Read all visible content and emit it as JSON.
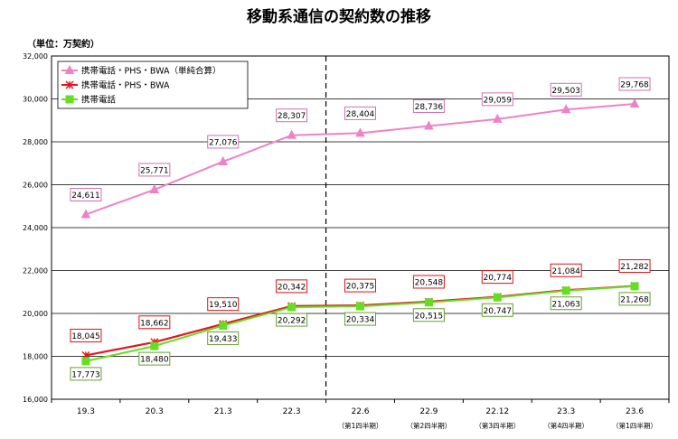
{
  "chart_data": {
    "type": "line",
    "title": "移動系通信の契約数の推移",
    "unit_label": "（単位：万契約）",
    "categories": [
      "19.3",
      "20.3",
      "21.3",
      "22.3",
      "22.6",
      "22.9",
      "22.12",
      "23.3",
      "23.6"
    ],
    "sublabels": [
      "",
      "",
      "",
      "",
      "（第1四半期）",
      "（第2四半期）",
      "（第3四半期）",
      "（第4四半期）",
      "（第1四半期）"
    ],
    "ylim": [
      16000,
      32000
    ],
    "yticks": [
      16000,
      18000,
      20000,
      22000,
      24000,
      26000,
      28000,
      30000,
      32000
    ],
    "ytick_labels": [
      "16,000",
      "18,000",
      "20,000",
      "22,000",
      "24,000",
      "26,000",
      "28,000",
      "30,000",
      "32,000"
    ],
    "grid": true,
    "legend_position": "top-left",
    "divider_after_category": "22.3",
    "series": [
      {
        "name": "携帯電話・PHS・BWA（単純合算）",
        "color": "#ee82c8",
        "label_border": "#d070b0",
        "marker": "triangle",
        "label_position": "above",
        "values": [
          24611,
          25771,
          27076,
          28307,
          28404,
          28736,
          29059,
          29503,
          29768
        ],
        "labels": [
          "24,611",
          "25,771",
          "27,076",
          "28,307",
          "28,404",
          "28,736",
          "29,059",
          "29,503",
          "29,768"
        ]
      },
      {
        "name": "携帯電話・PHS・BWA",
        "color": "#e8141e",
        "label_border": "#e01010",
        "marker": "star",
        "label_position": "above",
        "values": [
          18045,
          18662,
          19510,
          20342,
          20375,
          20548,
          20774,
          21084,
          21282
        ],
        "labels": [
          "18,045",
          "18,662",
          "19,510",
          "20,342",
          "20,375",
          "20,548",
          "20,774",
          "21,084",
          "21,282"
        ]
      },
      {
        "name": "携帯電話",
        "color": "#66dd22",
        "label_border": "#66a030",
        "marker": "square",
        "label_position": "below",
        "values": [
          17773,
          18480,
          19433,
          20292,
          20334,
          20515,
          20747,
          21063,
          21268
        ],
        "labels": [
          "17,773",
          "18,480",
          "19,433",
          "20,292",
          "20,334",
          "20,515",
          "20,747",
          "21,063",
          "21,268"
        ]
      }
    ]
  }
}
